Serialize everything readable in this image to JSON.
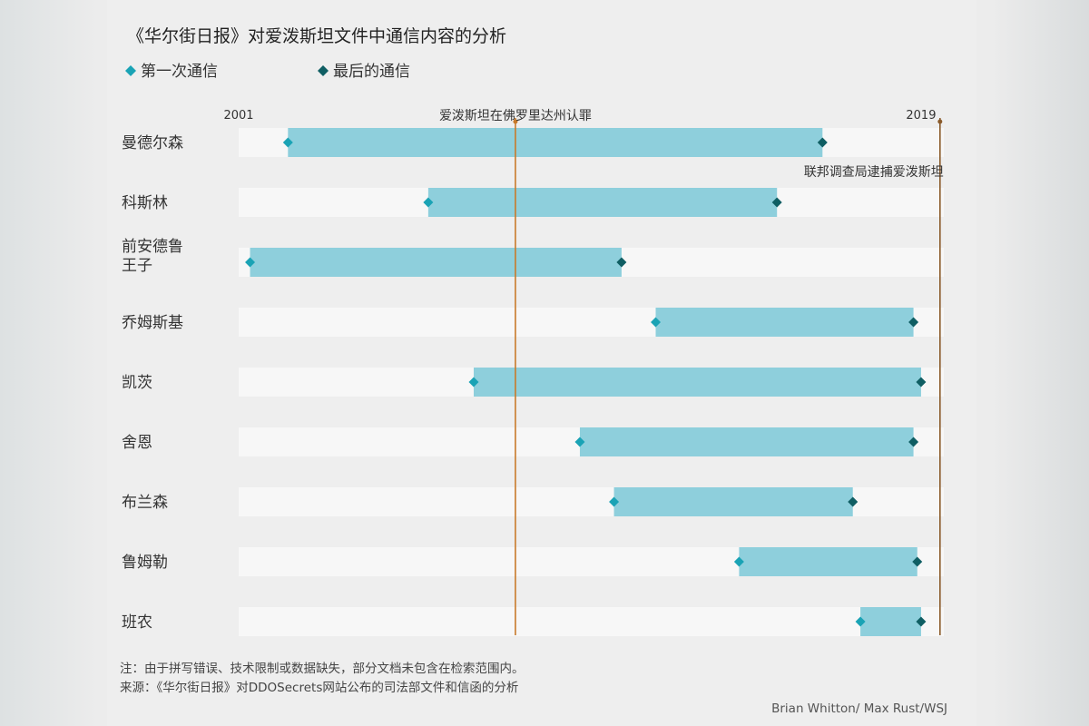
{
  "chart_data": {
    "type": "range",
    "title": "《华尔街日报》对爱泼斯坦文件中通信内容的分析",
    "legend": [
      {
        "label": "第一次通信",
        "color": "#1aa3b5"
      },
      {
        "label": "最后的通信",
        "color": "#0f5e63"
      }
    ],
    "x_range": [
      2001,
      2019.6
    ],
    "x_ticks": [
      {
        "label": "2001",
        "value": 2001
      },
      {
        "label": "2019",
        "value": 2019
      }
    ],
    "annotations": [
      {
        "text": "爱泼斯坦在佛罗里达州认罪",
        "value": 2008.3,
        "color": "#c87a2a"
      },
      {
        "text": "联邦调查局逮捕爱泼斯坦",
        "value": 2019.5,
        "color": "#8a5a2a"
      }
    ],
    "rows": [
      {
        "name": "曼德尔森",
        "first": 2002.3,
        "last": 2016.4
      },
      {
        "name": "科斯林",
        "first": 2006.0,
        "last": 2015.2
      },
      {
        "name": "前安德鲁王子",
        "first": 2001.3,
        "last": 2011.1
      },
      {
        "name": "乔姆斯基",
        "first": 2012.0,
        "last": 2018.8
      },
      {
        "name": "凯茨",
        "first": 2007.2,
        "last": 2019.0
      },
      {
        "name": "舍恩",
        "first": 2010.0,
        "last": 2018.8
      },
      {
        "name": "布兰森",
        "first": 2010.9,
        "last": 2017.2
      },
      {
        "name": "鲁姆勒",
        "first": 2014.2,
        "last": 2018.9
      },
      {
        "name": "班农",
        "first": 2017.4,
        "last": 2019.0
      }
    ],
    "colors": {
      "track": "#f7f7f7",
      "bar": "#8ecfdc",
      "first_marker": "#1aa3b5",
      "last_marker": "#0f5e63"
    }
  },
  "notes": {
    "note": "注：由于拼写错误、技术限制或数据缺失，部分文档未包含在检索范围内。",
    "source": "来源：《华尔街日报》对DDOSecrets网站公布的司法部文件和信函的分析"
  },
  "credit": "Brian Whitton/ Max Rust/WSJ"
}
